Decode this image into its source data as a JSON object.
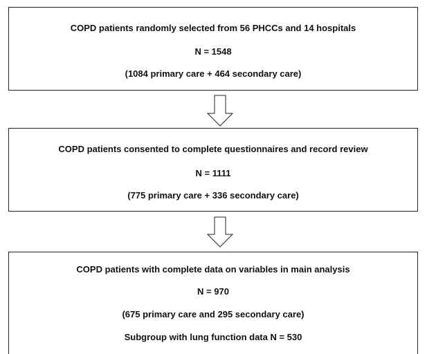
{
  "nodes": [
    {
      "lines": [
        "COPD patients randomly selected from 56 PHCCs and 14 hospitals",
        "N = 1548",
        "(1084 primary care + 464 secondary care)"
      ]
    },
    {
      "lines": [
        "COPD patients consented to complete questionnaires and record review",
        "N = 1111",
        "(775 primary care + 336 secondary care)"
      ]
    },
    {
      "lines": [
        "COPD patients with complete data on variables in main analysis",
        "N = 970",
        "(675 primary care and 295 secondary care)",
        "Subgroup with lung function data N = 530"
      ]
    }
  ]
}
